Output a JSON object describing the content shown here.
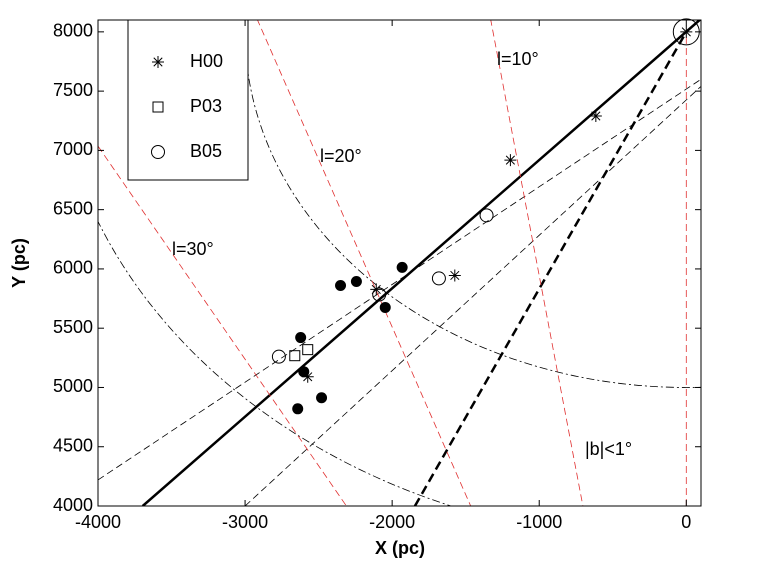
{
  "chart_data": {
    "type": "scatter",
    "xlabel": "X (pc)",
    "ylabel": "Y (pc)",
    "xlim": [
      -4000,
      100
    ],
    "ylim": [
      4000,
      8100
    ],
    "xticks": [
      -4000,
      -3000,
      -2000,
      -1000,
      0
    ],
    "yticks": [
      4000,
      4500,
      5000,
      5500,
      6000,
      6500,
      7000,
      7500,
      8000
    ],
    "legend": "upper left",
    "annotations": [
      "l=10°",
      "l=20°",
      "l=30°",
      "|b|<1°"
    ],
    "circles": [
      {
        "center": [
          0,
          8000
        ],
        "radius": 3000,
        "color": "#000000"
      },
      {
        "center": [
          0,
          8000
        ],
        "radius": 4308,
        "color": "#000000"
      }
    ],
    "series": [
      {
        "color": "#000000",
        "line": "solid",
        "width": 2.5,
        "x": [
          -3696,
          100
        ],
        "values": [
          4000,
          8110
        ]
      },
      {
        "color": "#000000",
        "line": "dashed",
        "width": 2.5,
        "x": [
          -1845,
          0
        ],
        "values": [
          4000,
          8000
        ]
      },
      {
        "color": "#000000",
        "line": "dashed",
        "width": 0.8,
        "x": [
          -4000,
          100
        ],
        "values": [
          4220,
          7600
        ]
      },
      {
        "color": "#000000",
        "line": "dashed",
        "width": 0.8,
        "x": [
          -3000,
          100
        ],
        "values": [
          4000,
          7540
        ]
      },
      {
        "color": "#e03030",
        "line": "dashed",
        "width": 0.8,
        "x": [
          -1331,
          -703
        ],
        "values": [
          8110,
          4000
        ]
      },
      {
        "color": "#e03030",
        "line": "dashed",
        "width": 0.8,
        "x": [
          -2919,
          -1466
        ],
        "values": [
          8110,
          4000
        ]
      },
      {
        "color": "#e03030",
        "line": "dashed",
        "width": 0.8,
        "x": [
          -4000,
          -2311
        ],
        "values": [
          7036,
          4000
        ]
      },
      {
        "color": "#e03030",
        "line": "dashed",
        "width": 0.8,
        "x": [
          0,
          0
        ],
        "values": [
          4000,
          8000
        ]
      },
      {
        "name": "H00",
        "color": "#000000",
        "marker": "asterisk",
        "x": [
          -615,
          -1196,
          -1574,
          -2108,
          -2574,
          0
        ],
        "values": [
          7290,
          6918,
          5945,
          5827,
          5090,
          8000
        ]
      },
      {
        "name": "P03",
        "color": "#000000",
        "marker": "square",
        "x": [
          -2662,
          -2574
        ],
        "values": [
          5268,
          5319
        ]
      },
      {
        "name": "B05",
        "color": "#000000",
        "marker": "circle",
        "x": [
          -1358,
          -1682,
          -2088,
          -2770
        ],
        "values": [
          6452,
          5920,
          5784,
          5260
        ]
      },
      {
        "color": "#000000",
        "marker": "filled-circle",
        "x": [
          -2351,
          -2243,
          -1932,
          -2047,
          -2622,
          -2601,
          -2480,
          -2642
        ],
        "values": [
          5860,
          5894,
          6013,
          5675,
          5421,
          5133,
          4913,
          4820
        ]
      },
      {
        "color": "#000000",
        "marker": "big-circle",
        "x": [
          0
        ],
        "values": [
          8000
        ]
      }
    ]
  }
}
